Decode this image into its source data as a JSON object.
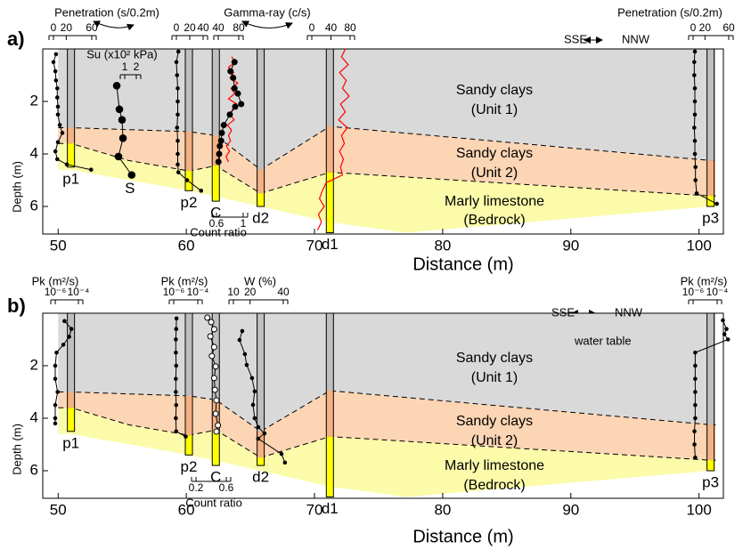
{
  "chart_data": [
    {
      "type": "cross-section",
      "label": "a)",
      "xlabel": "Distance (m)",
      "ylabel": "Depth (m)",
      "xlim": [
        48.8,
        101.9
      ],
      "xticks": [
        50,
        60,
        70,
        80,
        90,
        100
      ],
      "ylim": [
        0,
        7.05
      ],
      "yticks": [
        2,
        4,
        6
      ],
      "direction": [
        "SSE",
        "NNW"
      ],
      "layers": [
        {
          "label": [
            "Sandy clays",
            "(Unit 1)"
          ],
          "color": "#d9d9d9",
          "borehole_color": "#bfbfbf"
        },
        {
          "label": [
            "Sandy clays",
            "(Unit 2)"
          ],
          "color": "#fcd5b4",
          "borehole_color": "#f4b183"
        },
        {
          "label": [
            "Marly limestone",
            "(Bedrock)"
          ],
          "color": "#fbfbaa",
          "borehole_color": "#ffff00"
        }
      ],
      "boundaries": [
        {
          "x": [
            50,
            51,
            60.2,
            62.3,
            65.8,
            71.2,
            100.9,
            101.3
          ],
          "depth": [
            3.0,
            3.0,
            3.15,
            3.3,
            4.6,
            2.95,
            4.25,
            4.25
          ],
          "dashed": true
        },
        {
          "x": [
            50,
            51,
            55.5,
            60.2,
            62.3,
            65.8,
            71.2,
            100.9,
            101.3
          ],
          "depth": [
            3.6,
            3.6,
            4.25,
            4.65,
            4.45,
            5.5,
            4.7,
            5.6,
            5.6
          ],
          "dashed": true
        },
        {
          "x": [
            50,
            51,
            60.2,
            65.8,
            71.2,
            77.1,
            100.9,
            101.3
          ],
          "depth": [
            4.6,
            4.6,
            5.4,
            6.0,
            6.6,
            7.0,
            6.0,
            6.0
          ],
          "dashed": false
        }
      ],
      "boreholes": [
        {
          "label": "p1",
          "x": 51,
          "bottom": 4.5
        },
        {
          "label": "p2",
          "x": 60.2,
          "bottom": 5.4
        },
        {
          "label": "C",
          "x": 62.3,
          "bottom": 5.8
        },
        {
          "label": "d2",
          "x": 65.8,
          "bottom": 6.0
        },
        {
          "label": "d1",
          "x": 71.2,
          "bottom": 7.0
        },
        {
          "label": "p3",
          "x": 100.9,
          "bottom": 6.0
        }
      ],
      "insets": [
        {
          "title": "Penetration (s/0.2m)",
          "ticks": [
            0,
            20,
            60
          ],
          "log": false,
          "profiles": [
            {
              "depth": [
                0.2,
                0.5,
                0.85,
                1.2,
                1.5,
                1.85,
                2.2,
                2.5,
                2.9,
                3.2,
                3.55,
                3.9,
                4.2,
                4.4,
                4.6
              ],
              "values": [
                4,
                0,
                3,
                4,
                6,
                6,
                7,
                7,
                10,
                14,
                7,
                3,
                6,
                21,
                59
              ],
              "color": "#000000",
              "marker": "dot"
            }
          ]
        },
        {
          "title": "Su (x10² kPa)",
          "label": "S",
          "ticks": [
            1,
            2
          ],
          "log": false,
          "profiles": [
            {
              "depth": [
                1.4,
                2.3,
                2.7,
                3.4,
                4.1,
                4.8
              ],
              "values": [
                0.31,
                0.54,
                0.77,
                0.85,
                0.46,
                1.6
              ],
              "color": "#000000",
              "marker": "large"
            }
          ]
        },
        {
          "ticks": [
            0,
            20,
            40
          ],
          "log": false,
          "profiles": [
            {
              "depth": [
                0.1,
                0.5,
                1,
                1.5,
                2,
                2.5,
                3,
                3.5,
                4,
                4.4,
                4.7,
                5.0,
                5.4
              ],
              "values": [
                3,
                0,
                1,
                2,
                2,
                2,
                1,
                2,
                2,
                2,
                3,
                16,
                37
              ],
              "color": "#000000",
              "marker": "dot"
            }
          ]
        },
        {
          "title": "Gamma-ray (c/s)",
          "ticks": [
            40,
            80
          ],
          "log": false,
          "profiles": [
            {
              "depth": [
                0.3,
                0.5,
                0.7,
                0.9,
                1.1,
                1.3,
                1.5,
                1.7,
                1.9,
                2.1,
                2.3,
                2.5,
                2.7,
                2.9,
                3.1,
                3.3,
                3.5,
                3.7,
                3.9,
                4.1,
                4.3
              ],
              "values": [
                66,
                74,
                60,
                70,
                63,
                78,
                65,
                72,
                60,
                76,
                68,
                63,
                71,
                58,
                66,
                60,
                64,
                56,
                62,
                55,
                60
              ],
              "color": "#ff0000",
              "marker": "none"
            }
          ]
        },
        {
          "title": "Count ratio",
          "ticks": [
            0.6,
            1
          ],
          "log": false,
          "profiles": [
            {
              "depth": [
                0.5,
                0.85,
                1.1,
                1.5,
                1.7,
                2.1,
                2.2,
                2.5,
                2.9,
                3.2,
                3.5,
                3.7,
                4.0,
                4.3
              ],
              "values": [
                0.87,
                0.81,
                0.85,
                0.87,
                0.92,
                0.97,
                0.88,
                0.8,
                0.71,
                0.68,
                0.67,
                0.65,
                0.64,
                0.63
              ],
              "color": "#000000",
              "marker": "circle"
            }
          ]
        },
        {
          "ticks": [
            0,
            40,
            80
          ],
          "log": false,
          "profiles": [
            {
              "depth": [
                0,
                0.3,
                0.6,
                0.9,
                1.2,
                1.5,
                1.8,
                2.1,
                2.4,
                2.7,
                3.0,
                3.3,
                3.6,
                3.9,
                4.2,
                4.5,
                4.8,
                5.1,
                5.4,
                5.7,
                6.0,
                6.3,
                6.6,
                6.9
              ],
              "values": [
                70,
                62,
                76,
                58,
                72,
                64,
                78,
                60,
                70,
                56,
                74,
                62,
                68,
                58,
                66,
                60,
                64,
                30,
                22,
                16,
                26,
                14,
                20,
                12
              ],
              "color": "#ff0000",
              "marker": "none"
            }
          ]
        },
        {
          "title": "Penetration (s/0.2m)",
          "ticks": [
            0,
            20,
            60
          ],
          "log": false,
          "profiles": [
            {
              "depth": [
                0.1,
                0.5,
                1,
                1.5,
                2,
                2.5,
                3,
                3.5,
                4,
                4.5,
                5,
                5.5,
                5.9
              ],
              "values": [
                3,
                2,
                2,
                3,
                3,
                3,
                2,
                3,
                3,
                4,
                4,
                6,
                40
              ],
              "color": "#000000",
              "marker": "dot"
            }
          ]
        }
      ]
    },
    {
      "type": "cross-section",
      "label": "b)",
      "xlabel": "Distance (m)",
      "ylabel": "Depth (m)",
      "xlim": [
        48.8,
        101.9
      ],
      "xticks": [
        50,
        60,
        70,
        80,
        90,
        100
      ],
      "ylim": [
        0,
        7.05
      ],
      "yticks": [
        2,
        4,
        6
      ],
      "direction": [
        "SSE",
        "NNW"
      ],
      "legend": "water table",
      "layers": [
        {
          "label": [
            "Sandy clays",
            "(Unit 1)"
          ],
          "color": "#d9d9d9",
          "borehole_color": "#bfbfbf"
        },
        {
          "label": [
            "Sandy clays",
            "(Unit 2)"
          ],
          "color": "#fcd5b4",
          "borehole_color": "#f4b183"
        },
        {
          "label": [
            "Marly limestone",
            "(Bedrock)"
          ],
          "color": "#fbfbaa",
          "borehole_color": "#ffff00"
        }
      ],
      "boundaries": [
        {
          "x": [
            50,
            51,
            60.2,
            62.3,
            65.8,
            71.2,
            100.9,
            101.3
          ],
          "depth": [
            3.0,
            3.0,
            3.15,
            3.3,
            4.5,
            2.95,
            4.25,
            4.25
          ],
          "dashed": true
        },
        {
          "x": [
            50,
            51,
            55.5,
            60.2,
            62.3,
            65.8,
            71.2,
            100.9,
            101.3
          ],
          "depth": [
            3.6,
            3.6,
            4.25,
            4.65,
            4.45,
            5.5,
            4.7,
            5.6,
            5.6
          ],
          "dashed": true
        },
        {
          "x": [
            50,
            51,
            60.2,
            65.8,
            71.2,
            77.1,
            100.9,
            101.3
          ],
          "depth": [
            4.6,
            4.6,
            5.4,
            6.0,
            6.6,
            7.0,
            6.0,
            6.0
          ],
          "dashed": false
        }
      ],
      "boreholes": [
        {
          "label": "p1",
          "x": 51,
          "bottom": 4.5
        },
        {
          "label": "p2",
          "x": 60.2,
          "bottom": 5.4
        },
        {
          "label": "C",
          "x": 62.3,
          "bottom": 5.8
        },
        {
          "label": "d2",
          "x": 65.8,
          "bottom": 5.8
        },
        {
          "label": "d1",
          "x": 71.2,
          "bottom": 7.0
        },
        {
          "label": "p3",
          "x": 100.9,
          "bottom": 6.0
        }
      ],
      "insets": [
        {
          "title": "Pk (m²/s)",
          "ticks": [
            {
              "value": 1e-06,
              "label": "10⁻⁶"
            },
            {
              "value": 0.0001,
              "label": "10⁻⁴"
            }
          ],
          "log": true,
          "profiles": [
            {
              "depth": [
                0.3,
                0.6,
                0.9,
                1.2,
                1.5,
                2,
                2.5,
                3,
                3.5,
                4,
                4.2
              ],
              "values": [
                6.3e-06,
                2.5e-05,
                1.6e-05,
                5e-06,
                1.3e-06,
                1e-06,
                1e-06,
                1.6e-06,
                1e-06,
                1e-06,
                1e-06
              ],
              "color": "#000000",
              "marker": "dot"
            }
          ]
        },
        {
          "title": "Pk (m²/s)",
          "ticks": [
            {
              "value": 1e-06,
              "label": "10⁻⁶"
            },
            {
              "value": 0.0001,
              "label": "10⁻⁴"
            }
          ],
          "log": true,
          "profiles": [
            {
              "depth": [
                0.2,
                0.6,
                1,
                1.5,
                2,
                2.5,
                3,
                3.5,
                4,
                4.5,
                4.7
              ],
              "values": [
                1.7e-06,
                1.6e-06,
                1.5e-06,
                1.5e-06,
                1.6e-06,
                1.5e-06,
                1.5e-06,
                1.6e-06,
                1.5e-06,
                1.6e-06,
                1e-05
              ],
              "color": "#000000",
              "marker": "dot"
            }
          ]
        },
        {
          "title": "Count ratio",
          "ticks": [
            0.2,
            0.6
          ],
          "log": false,
          "profiles": [
            {
              "depth": [
                0.17,
                0.34,
                0.61,
                0.88,
                1.29,
                1.63,
                2.03,
                2.47,
                2.92,
                3.32,
                3.83,
                4.27,
                4.51
              ],
              "values": [
                0.35,
                0.4,
                0.44,
                0.39,
                0.44,
                0.41,
                0.46,
                0.44,
                0.45,
                0.47,
                0.46,
                0.49,
                0.47
              ],
              "color": "#000000",
              "marker": "open"
            }
          ]
        },
        {
          "title": "W (%)",
          "ticks": [
            10,
            20,
            40
          ],
          "log": false,
          "profiles": [
            {
              "depth": [
                0.68,
                1.02,
                1.56,
                1.97,
                2.47,
                2.98,
                3.49,
                4,
                4.34,
                4.58,
                4.78,
                5.36,
                5.69
              ],
              "values": [
                15.3,
                13.7,
                16.9,
                18,
                21.2,
                22.8,
                21.8,
                22.8,
                24.9,
                28.7,
                24.9,
                38.9,
                41
              ],
              "color": "#000000",
              "marker": "dot"
            }
          ]
        },
        {
          "title": "Pk (m²/s)",
          "ticks": [
            {
              "value": 1e-06,
              "label": "10⁻⁶"
            },
            {
              "value": 0.0001,
              "label": "10⁻⁴"
            }
          ],
          "log": true,
          "profiles": [
            {
              "depth": [
                0.27,
                0.6,
                0.8,
                1.0,
                1.5,
                2,
                2.5,
                3,
                3.5,
                4,
                4.5,
                5,
                5.5
              ],
              "values": [
                0.0003,
                0.0006,
                0.0004,
                0.0008,
                1.5e-06,
                1.5e-06,
                1.5e-06,
                1.5e-06,
                1.5e-06,
                1.5e-06,
                1.3e-06,
                1.3e-06,
                1.5e-06
              ],
              "color": "#000000",
              "marker": "dot"
            }
          ]
        }
      ]
    }
  ]
}
